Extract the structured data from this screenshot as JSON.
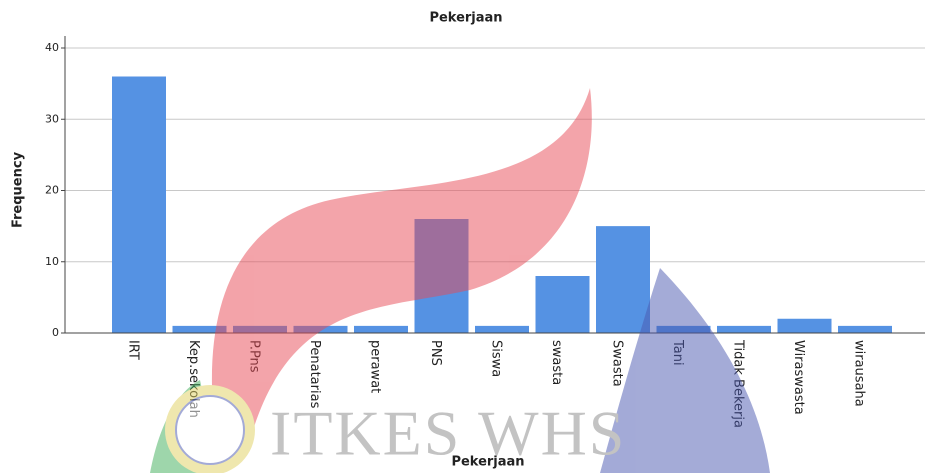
{
  "chart_data": {
    "type": "bar",
    "title": "Pekerjaan",
    "x_label": "Pekerjaan",
    "y_label": "Frequency",
    "categories": [
      "IRT",
      "Kep.sekolah",
      "P.Pns",
      "Penatarias",
      "perawat",
      "PNS",
      "Siswa",
      "swasta",
      "Swasta",
      "Tani",
      "Tidak Bekerja",
      "Wiraswasta",
      "wirausaha"
    ],
    "values": [
      36,
      1,
      1,
      1,
      1,
      16,
      1,
      8,
      15,
      1,
      1,
      2,
      1
    ],
    "color": "#5592e3",
    "ylim": [
      0,
      40
    ],
    "yticks": [
      0,
      10,
      20,
      30,
      40
    ],
    "grid": true,
    "watermark": "ITKES WHS"
  }
}
